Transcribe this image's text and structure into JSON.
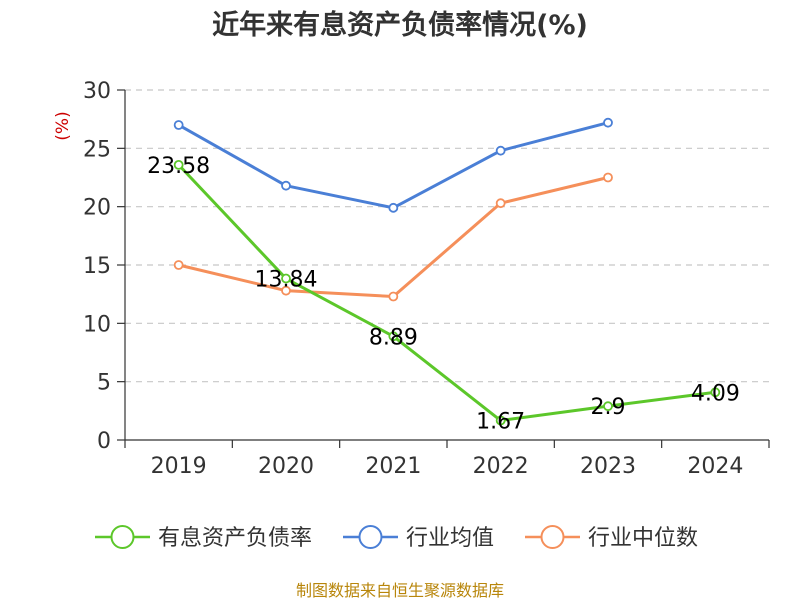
{
  "chart_data": {
    "type": "line",
    "title": "近年来有息资产负债率情况(%)",
    "y_unit": "(%)",
    "categories": [
      "2019",
      "2020",
      "2021",
      "2022",
      "2023",
      "2024"
    ],
    "ylim": [
      0,
      30
    ],
    "yticks": [
      0,
      5,
      10,
      15,
      20,
      25,
      30
    ],
    "grid": true,
    "legend_position": "bottom",
    "series": [
      {
        "name": "有息资产负债率",
        "color": "#5cc72a",
        "values": [
          23.58,
          13.84,
          8.89,
          1.67,
          2.9,
          4.09
        ],
        "labels": [
          "23.58",
          "13.84",
          "8.89",
          "1.67",
          "2.9",
          "4.09"
        ]
      },
      {
        "name": "行业均值",
        "color": "#4a7fd6",
        "values": [
          27.0,
          21.8,
          19.9,
          24.8,
          27.2,
          null
        ]
      },
      {
        "name": "行业中位数",
        "color": "#f58f5a",
        "values": [
          15.0,
          12.8,
          12.3,
          20.3,
          22.5,
          null
        ]
      }
    ]
  },
  "source": "制图数据来自恒生聚源数据库"
}
